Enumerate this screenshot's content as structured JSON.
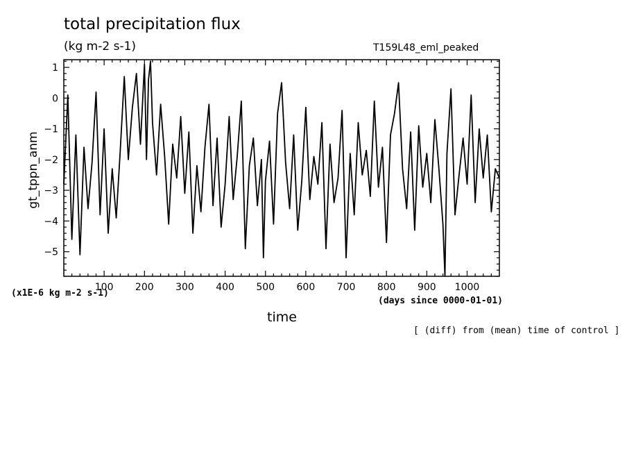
{
  "header": {
    "title": "total precipitation flux",
    "units": "(kg m-2 s-1)",
    "run_name": "T159L48_eml_peaked"
  },
  "footer": {
    "scale_note": "(x1E-6 kg m-2 s-1)",
    "x_units": "(days since 0000-01-01)",
    "comparison_note": "[ (diff) from (mean) time of control ]"
  },
  "chart_data": {
    "type": "line",
    "title": "total precipitation flux",
    "subtitle": "(kg m-2 s-1)",
    "xlabel": "time",
    "ylabel": "gt_tppn_anm",
    "xlim": [
      0,
      1080
    ],
    "ylim": [
      -5.8,
      1.25
    ],
    "x_ticks": [
      100,
      200,
      300,
      400,
      500,
      600,
      700,
      800,
      900,
      1000
    ],
    "y_ticks": [
      1,
      0,
      -1,
      -2,
      -3,
      -4,
      -5
    ],
    "grid": false,
    "line_color": "#000000",
    "series": [
      {
        "x": [
          0,
          10,
          20,
          30,
          40,
          50,
          60,
          70,
          80,
          90,
          100,
          110,
          120,
          130,
          140,
          150,
          160,
          170,
          180,
          190,
          200,
          205,
          210,
          215,
          220,
          230,
          240,
          250,
          260,
          270,
          280,
          290,
          300,
          310,
          320,
          330,
          340,
          350,
          360,
          370,
          380,
          390,
          400,
          410,
          420,
          430,
          440,
          450,
          460,
          470,
          480,
          490,
          495,
          500,
          510,
          520,
          530,
          540,
          550,
          560,
          570,
          580,
          590,
          600,
          610,
          620,
          630,
          640,
          650,
          660,
          670,
          680,
          690,
          700,
          710,
          720,
          730,
          740,
          750,
          760,
          770,
          780,
          790,
          800,
          810,
          820,
          830,
          840,
          850,
          860,
          870,
          880,
          890,
          900,
          910,
          920,
          930,
          940,
          945,
          950,
          960,
          970,
          980,
          990,
          1000,
          1010,
          1020,
          1030,
          1040,
          1050,
          1060,
          1070,
          1080
        ],
        "values": [
          -2.8,
          0.1,
          -4.6,
          -1.2,
          -5.1,
          -1.6,
          -3.6,
          -2.1,
          0.2,
          -3.8,
          -1.0,
          -4.4,
          -2.3,
          -3.9,
          -1.7,
          0.7,
          -2.0,
          -0.3,
          0.8,
          -1.5,
          1.1,
          -2.0,
          0.6,
          1.2,
          -0.8,
          -2.5,
          -0.2,
          -1.9,
          -4.1,
          -1.5,
          -2.6,
          -0.6,
          -3.1,
          -1.1,
          -4.4,
          -2.2,
          -3.7,
          -1.6,
          -0.2,
          -3.5,
          -1.3,
          -4.2,
          -2.8,
          -0.6,
          -3.3,
          -1.9,
          -0.1,
          -4.9,
          -2.2,
          -1.3,
          -3.5,
          -2.0,
          -5.2,
          -2.7,
          -1.4,
          -4.1,
          -0.5,
          0.5,
          -2.1,
          -3.6,
          -1.2,
          -4.3,
          -2.7,
          -0.3,
          -3.3,
          -1.9,
          -2.8,
          -0.8,
          -4.9,
          -1.5,
          -3.4,
          -2.6,
          -0.4,
          -5.2,
          -1.8,
          -3.8,
          -0.8,
          -2.5,
          -1.7,
          -3.2,
          -0.1,
          -2.9,
          -1.6,
          -4.7,
          -1.2,
          -0.5,
          0.5,
          -2.3,
          -3.6,
          -1.1,
          -4.3,
          -0.9,
          -2.9,
          -1.8,
          -3.4,
          -0.7,
          -2.3,
          -4.1,
          -5.8,
          -1.8,
          0.3,
          -3.8,
          -2.5,
          -1.3,
          -2.8,
          0.1,
          -3.4,
          -1.0,
          -2.6,
          -1.2,
          -3.7,
          -2.3,
          -2.6
        ]
      }
    ]
  }
}
